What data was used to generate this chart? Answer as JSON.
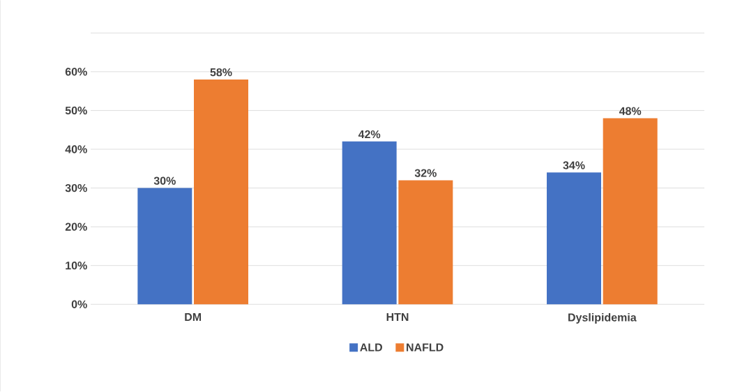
{
  "chart_data": {
    "type": "bar",
    "categories": [
      "DM",
      "HTN",
      "Dyslipidemia"
    ],
    "series": [
      {
        "name": "ALD",
        "color": "#4472c4",
        "values": [
          30,
          42,
          34
        ],
        "value_labels": [
          "30%",
          "42%",
          "34%"
        ]
      },
      {
        "name": "NAFLD",
        "color": "#ed7d31",
        "values": [
          58,
          32,
          48
        ],
        "value_labels": [
          "58%",
          "32%",
          "48%"
        ]
      }
    ],
    "ylim": [
      0,
      70
    ],
    "yticks": [
      {
        "value": 0,
        "label": "0%"
      },
      {
        "value": 10,
        "label": "10%"
      },
      {
        "value": 20,
        "label": "20%"
      },
      {
        "value": 30,
        "label": "30%"
      },
      {
        "value": 40,
        "label": "40%"
      },
      {
        "value": 50,
        "label": "50%"
      },
      {
        "value": 60,
        "label": "60%"
      },
      {
        "value": 70,
        "label": null
      }
    ],
    "grid": "y",
    "legend": "bottom"
  }
}
